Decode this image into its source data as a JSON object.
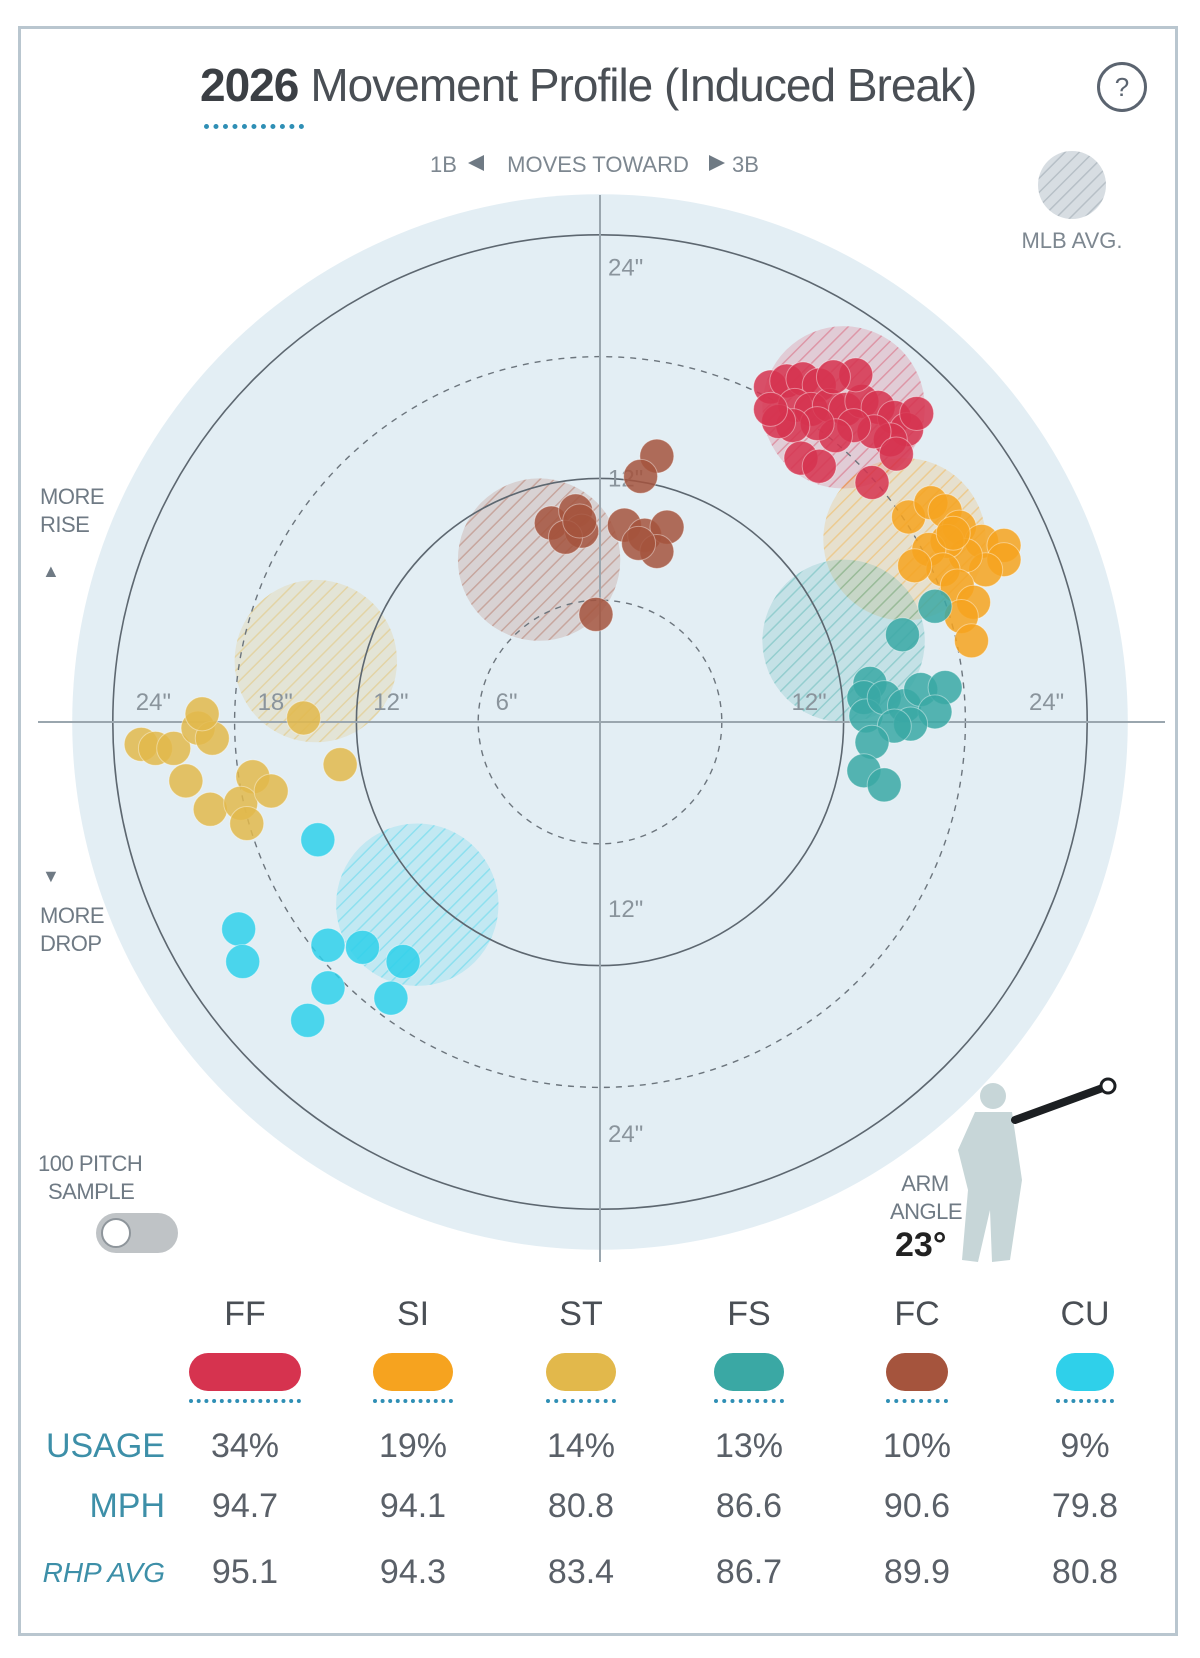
{
  "header": {
    "title_year": "2026",
    "title_text": "Movement Profile (Induced Break)",
    "help_label": "?"
  },
  "labels": {
    "moves_toward_left": "1B",
    "moves_toward_mid": "MOVES TOWARD",
    "moves_toward_right": "3B",
    "mlb_avg": "MLB AVG.",
    "more_rise_1": "MORE",
    "more_rise_2": "RISE",
    "more_drop_1": "MORE",
    "more_drop_2": "DROP",
    "sample_1": "100 PITCH",
    "sample_2": "SAMPLE",
    "arm_angle_1": "ARM",
    "arm_angle_2": "ANGLE",
    "arm_angle_value": "23°"
  },
  "colors": {
    "FF": "#d6334f",
    "SI": "#f6a31f",
    "ST": "#e2b84b",
    "FS": "#3aa8a4",
    "FC": "#a5543d",
    "CU": "#2fd0ea",
    "plot_bg": "#e3eef4"
  },
  "chart_data": {
    "type": "scatter",
    "title": "2026 Movement Profile (Induced Break)",
    "xlabel": "MOVES TOWARD",
    "axis_ticks_horizontal": [
      "24\"",
      "18\"",
      "12\"",
      "6\"",
      "12\"",
      "24\""
    ],
    "axis_ticks_vertical": [
      "24\"",
      "12\"",
      "12\"",
      "24\""
    ],
    "rings_inches": [
      6,
      12,
      18,
      24
    ],
    "xlim": [
      -24,
      24
    ],
    "ylim": [
      -24,
      24
    ],
    "toggle": "100 PITCH SAMPLE",
    "arm_angle_deg": 23,
    "series": [
      {
        "name": "FF",
        "avg": [
          12,
          15.5
        ],
        "points": [
          [
            8.4,
            16.5
          ],
          [
            9.2,
            16.8
          ],
          [
            10,
            16.9
          ],
          [
            10.8,
            16.6
          ],
          [
            9.6,
            15.6
          ],
          [
            10.4,
            15.4
          ],
          [
            11.3,
            15.6
          ],
          [
            12.1,
            15.4
          ],
          [
            12.9,
            15.8
          ],
          [
            13.7,
            15.5
          ],
          [
            14.5,
            15.0
          ],
          [
            15.1,
            14.4
          ],
          [
            14.3,
            13.9
          ],
          [
            13.5,
            14.3
          ],
          [
            12.5,
            14.6
          ],
          [
            11.6,
            14.1
          ],
          [
            10.7,
            14.7
          ],
          [
            9.5,
            14.6
          ],
          [
            8.8,
            14.8
          ],
          [
            8.4,
            15.4
          ],
          [
            9.9,
            13.0
          ],
          [
            10.8,
            12.6
          ],
          [
            13.4,
            11.8
          ],
          [
            14.6,
            13.2
          ],
          [
            15.6,
            15.2
          ],
          [
            12.6,
            17.1
          ],
          [
            11.5,
            17.0
          ]
        ]
      },
      {
        "name": "SI",
        "avg": [
          15,
          9
        ],
        "points": [
          [
            15.2,
            10.1
          ],
          [
            16.3,
            10.8
          ],
          [
            17.0,
            10.4
          ],
          [
            17.7,
            9.6
          ],
          [
            18.8,
            8.9
          ],
          [
            19.9,
            8.7
          ],
          [
            19.9,
            8.0
          ],
          [
            19.0,
            7.5
          ],
          [
            18.0,
            8.2
          ],
          [
            17.1,
            8.9
          ],
          [
            16.2,
            8.5
          ],
          [
            16.9,
            7.5
          ],
          [
            17.6,
            6.7
          ],
          [
            18.4,
            5.9
          ],
          [
            17.8,
            5.2
          ],
          [
            18.3,
            4.0
          ],
          [
            15.5,
            7.7
          ],
          [
            17.4,
            9.3
          ]
        ]
      },
      {
        "name": "ST",
        "avg": [
          -14,
          3
        ],
        "points": [
          [
            -22.6,
            -1.1
          ],
          [
            -21.9,
            -1.3
          ],
          [
            -21.0,
            -1.3
          ],
          [
            -19.8,
            -0.3
          ],
          [
            -19.1,
            -0.8
          ],
          [
            -20.4,
            -2.9
          ],
          [
            -19.2,
            -4.3
          ],
          [
            -17.1,
            -2.7
          ],
          [
            -17.7,
            -4.0
          ],
          [
            -17.4,
            -5.0
          ],
          [
            -16.2,
            -3.4
          ],
          [
            -14.6,
            0.2
          ],
          [
            -12.8,
            -2.1
          ],
          [
            -19.6,
            0.4
          ]
        ]
      },
      {
        "name": "FS",
        "avg": [
          12,
          4
        ],
        "points": [
          [
            16.5,
            5.7
          ],
          [
            14.9,
            4.3
          ],
          [
            13.3,
            1.9
          ],
          [
            13.0,
            1.2
          ],
          [
            13.1,
            0.3
          ],
          [
            14.0,
            1.2
          ],
          [
            15.0,
            0.8
          ],
          [
            15.8,
            1.6
          ],
          [
            17.0,
            1.7
          ],
          [
            16.5,
            0.5
          ],
          [
            15.3,
            -0.1
          ],
          [
            14.5,
            -0.2
          ],
          [
            13.4,
            -1.0
          ],
          [
            13.0,
            -2.4
          ],
          [
            14.0,
            -3.1
          ]
        ]
      },
      {
        "name": "FC",
        "avg": [
          -3,
          8
        ],
        "points": [
          [
            2.8,
            13.1
          ],
          [
            2.0,
            12.1
          ],
          [
            -2.4,
            9.8
          ],
          [
            -1.2,
            10.4
          ],
          [
            -0.9,
            9.4
          ],
          [
            -1.7,
            9.1
          ],
          [
            1.2,
            9.7
          ],
          [
            2.2,
            9.2
          ],
          [
            3.3,
            9.6
          ],
          [
            2.8,
            8.4
          ],
          [
            1.9,
            8.8
          ],
          [
            -0.2,
            5.3
          ],
          [
            -1.0,
            9.9
          ]
        ]
      },
      {
        "name": "CU",
        "avg": [
          -9,
          -9
        ],
        "points": [
          [
            -13.9,
            -5.8
          ],
          [
            -17.8,
            -10.2
          ],
          [
            -17.6,
            -11.8
          ],
          [
            -13.4,
            -11.0
          ],
          [
            -11.7,
            -11.1
          ],
          [
            -9.7,
            -11.8
          ],
          [
            -13.4,
            -13.1
          ],
          [
            -10.3,
            -13.6
          ],
          [
            -14.4,
            -14.7
          ]
        ]
      }
    ]
  },
  "stats": {
    "row_labels": [
      "USAGE",
      "MPH",
      "RHP AVG"
    ],
    "pitches": [
      {
        "code": "FF",
        "usage": "34%",
        "mph": "94.7",
        "rhp_avg": "95.1"
      },
      {
        "code": "SI",
        "usage": "19%",
        "mph": "94.1",
        "rhp_avg": "94.3"
      },
      {
        "code": "ST",
        "usage": "14%",
        "mph": "80.8",
        "rhp_avg": "83.4"
      },
      {
        "code": "FS",
        "usage": "13%",
        "mph": "86.6",
        "rhp_avg": "86.7"
      },
      {
        "code": "FC",
        "usage": "10%",
        "mph": "90.6",
        "rhp_avg": "89.9"
      },
      {
        "code": "CU",
        "usage": "9%",
        "mph": "79.8",
        "rhp_avg": "80.8"
      }
    ]
  }
}
